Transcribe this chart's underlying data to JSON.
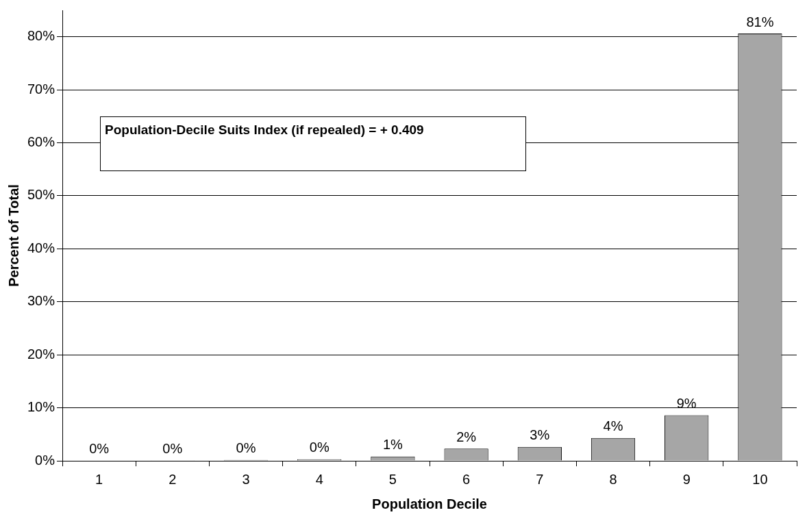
{
  "chart_data": {
    "type": "bar",
    "xlabel": "Population Decile",
    "ylabel": "Percent of Total",
    "categories": [
      "1",
      "2",
      "3",
      "4",
      "5",
      "6",
      "7",
      "8",
      "9",
      "10"
    ],
    "values": [
      0.05,
      0.1,
      0.15,
      0.3,
      0.8,
      2.3,
      2.6,
      4.3,
      8.6,
      80.6
    ],
    "value_labels": [
      "0%",
      "0%",
      "0%",
      "0%",
      "1%",
      "2%",
      "3%",
      "4%",
      "9%",
      "81%"
    ],
    "color": "#a6a6a6",
    "ylim": [
      0,
      85
    ],
    "yticks": [
      {
        "value": 0,
        "label": "0%"
      },
      {
        "value": 10,
        "label": "10%"
      },
      {
        "value": 20,
        "label": "20%"
      },
      {
        "value": 30,
        "label": "30%"
      },
      {
        "value": 40,
        "label": "40%"
      },
      {
        "value": 50,
        "label": "50%"
      },
      {
        "value": 60,
        "label": "60%"
      },
      {
        "value": 70,
        "label": "70%"
      },
      {
        "value": 80,
        "label": "80%"
      }
    ],
    "grid": "y",
    "annotations": [
      "Population-Decile Suits Index (if repealed) = + 0.409"
    ]
  }
}
